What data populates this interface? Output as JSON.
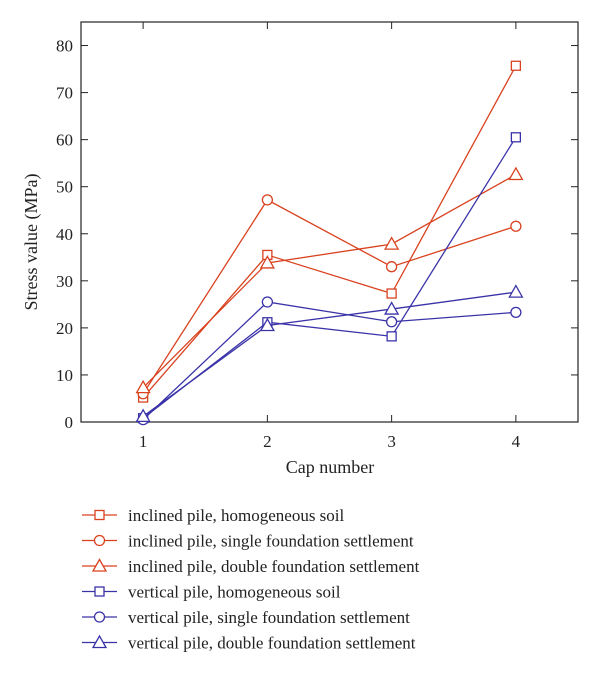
{
  "chart_data": {
    "type": "line",
    "xlabel": "Cap number",
    "ylabel": "Stress value (MPa)",
    "x": [
      1,
      2,
      3,
      4
    ],
    "xlim": [
      0.5,
      4.5
    ],
    "ylim": [
      0,
      85
    ],
    "xticks": [
      1,
      2,
      3,
      4
    ],
    "yticks": [
      0,
      10,
      20,
      30,
      40,
      50,
      60,
      70,
      80
    ],
    "grid": false,
    "legend_position": "bottom",
    "series": [
      {
        "name": "inclined pile, homogeneous soil",
        "values": [
          5.2,
          35.5,
          27.3,
          75.7
        ],
        "color": "#d9421f",
        "marker": "square"
      },
      {
        "name": "inclined pile, single foundation settlement",
        "values": [
          6.0,
          47.2,
          33.0,
          41.6
        ],
        "color": "#d9421f",
        "marker": "circle"
      },
      {
        "name": "inclined pile, double foundation settlement",
        "values": [
          7.3,
          33.8,
          37.8,
          52.6
        ],
        "color": "#d9421f",
        "marker": "triangle"
      },
      {
        "name": "vertical pile, homogeneous soil",
        "values": [
          0.8,
          21.2,
          18.2,
          60.5
        ],
        "color": "#3a33a8",
        "marker": "square"
      },
      {
        "name": "vertical pile, single foundation settlement",
        "values": [
          0.5,
          25.5,
          21.3,
          23.3
        ],
        "color": "#3a33a8",
        "marker": "circle"
      },
      {
        "name": "vertical pile, double foundation settlement",
        "values": [
          1.2,
          20.5,
          24.0,
          27.6
        ],
        "color": "#3a33a8",
        "marker": "triangle"
      }
    ]
  }
}
